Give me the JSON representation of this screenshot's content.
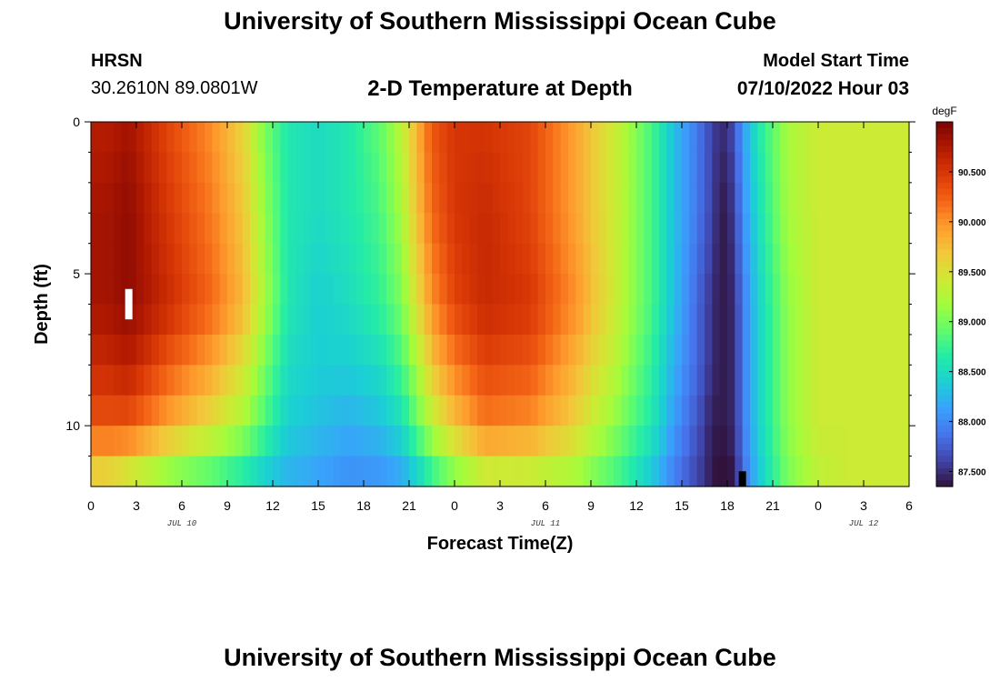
{
  "header": {
    "title": "University of Southern Mississippi Ocean Cube",
    "station": "HRSN",
    "coords": "30.2610N  89.0801W",
    "subtitle": "2-D Temperature at Depth",
    "model_start_label": "Model Start Time",
    "model_start_value": "07/10/2022 Hour 03"
  },
  "footer": {
    "title": "University of Southern Mississippi Ocean Cube"
  },
  "chart_data": {
    "type": "heatmap",
    "xlabel": "Forecast Time(Z)",
    "ylabel": "Depth (ft)",
    "x_ticks": [
      "0",
      "3",
      "6",
      "9",
      "12",
      "15",
      "18",
      "21",
      "0",
      "3",
      "6",
      "9",
      "12",
      "15",
      "18",
      "21",
      "0",
      "3",
      "6"
    ],
    "date_labels": [
      {
        "label": "JUL 10",
        "tick_index": 2
      },
      {
        "label": "JUL 11",
        "tick_index": 10
      },
      {
        "label": "JUL 12",
        "tick_index": 17
      }
    ],
    "y_ticks": [
      0,
      5,
      10
    ],
    "ylim": [
      12,
      0
    ],
    "xlim_hours": [
      0,
      54
    ],
    "colorbar": {
      "unit": "degF",
      "ticks": [
        "87.500",
        "88.000",
        "88.500",
        "89.000",
        "89.500",
        "90.000",
        "90.500"
      ],
      "range": [
        87.35,
        91.0
      ],
      "colormap": [
        "#30123b",
        "#4145ab",
        "#4675ed",
        "#39a2fc",
        "#1bcfd4",
        "#24eca6",
        "#61fc6c",
        "#a4fc3b",
        "#d1e834",
        "#f3c63a",
        "#fe9b2d",
        "#f36315",
        "#d93806",
        "#b11901",
        "#7a0403"
      ]
    },
    "time_hours": [
      1,
      2.5,
      5,
      8,
      10,
      11.5,
      13,
      15,
      17,
      19,
      20.5,
      21.5,
      22.5,
      24,
      26,
      29,
      32,
      35,
      37,
      38.5,
      40,
      41,
      41.5,
      42,
      42.5,
      43,
      44,
      46,
      48,
      50,
      53
    ],
    "series": [
      {
        "depth_ft": 0,
        "values": [
          90.7,
          90.8,
          90.4,
          90.0,
          89.6,
          89.0,
          88.6,
          88.5,
          88.6,
          88.9,
          89.3,
          89.8,
          90.3,
          90.5,
          90.5,
          90.4,
          89.9,
          89.3,
          88.8,
          88.3,
          87.9,
          87.6,
          87.5,
          87.5,
          87.7,
          88.1,
          88.6,
          89.2,
          89.4,
          89.4,
          89.4
        ]
      },
      {
        "depth_ft": 3,
        "values": [
          90.8,
          90.9,
          90.5,
          90.1,
          89.7,
          89.1,
          88.6,
          88.5,
          88.6,
          88.8,
          89.2,
          89.7,
          90.2,
          90.5,
          90.6,
          90.4,
          89.9,
          89.3,
          88.8,
          88.3,
          87.9,
          87.6,
          87.4,
          87.4,
          87.6,
          88.0,
          88.5,
          89.2,
          89.4,
          89.4,
          89.4
        ]
      },
      {
        "depth_ft": 6,
        "values": [
          90.8,
          90.9,
          90.6,
          90.2,
          89.8,
          89.2,
          88.6,
          88.4,
          88.5,
          88.7,
          89.0,
          89.5,
          90.0,
          90.4,
          90.6,
          90.5,
          90.0,
          89.3,
          88.8,
          88.3,
          87.8,
          87.5,
          87.4,
          87.4,
          87.5,
          87.9,
          88.4,
          89.1,
          89.4,
          89.4,
          89.4
        ]
      },
      {
        "depth_ft": 8,
        "values": [
          90.6,
          90.7,
          90.3,
          89.9,
          89.5,
          89.0,
          88.5,
          88.4,
          88.4,
          88.5,
          88.8,
          89.2,
          89.7,
          90.1,
          90.4,
          90.3,
          89.8,
          89.2,
          88.7,
          88.2,
          87.8,
          87.5,
          87.4,
          87.4,
          87.5,
          87.9,
          88.4,
          89.1,
          89.4,
          89.4,
          89.4
        ]
      },
      {
        "depth_ft": 10,
        "values": [
          90.3,
          90.3,
          89.9,
          89.5,
          89.2,
          88.8,
          88.4,
          88.3,
          88.2,
          88.3,
          88.5,
          88.9,
          89.3,
          89.7,
          90.1,
          90.0,
          89.6,
          89.0,
          88.6,
          88.1,
          87.7,
          87.4,
          87.4,
          87.4,
          87.5,
          87.9,
          88.4,
          89.1,
          89.4,
          89.4,
          89.4
        ]
      },
      {
        "depth_ft": 12,
        "values": [
          89.4,
          89.2,
          88.9,
          88.7,
          88.5,
          88.3,
          88.2,
          88.1,
          88.0,
          88.0,
          88.1,
          88.3,
          88.6,
          88.9,
          89.2,
          89.2,
          89.1,
          88.7,
          88.3,
          87.9,
          87.6,
          87.4,
          87.3,
          87.3,
          87.4,
          87.8,
          88.3,
          89.0,
          89.3,
          89.4,
          89.4
        ]
      }
    ],
    "missing_markers": [
      {
        "color": "#ffffff",
        "hour": 2.5,
        "depth_from": 5.5,
        "depth_to": 6.5
      },
      {
        "color": "#000000",
        "hour": 43,
        "depth_from": 11.5,
        "depth_to": 12
      }
    ]
  }
}
